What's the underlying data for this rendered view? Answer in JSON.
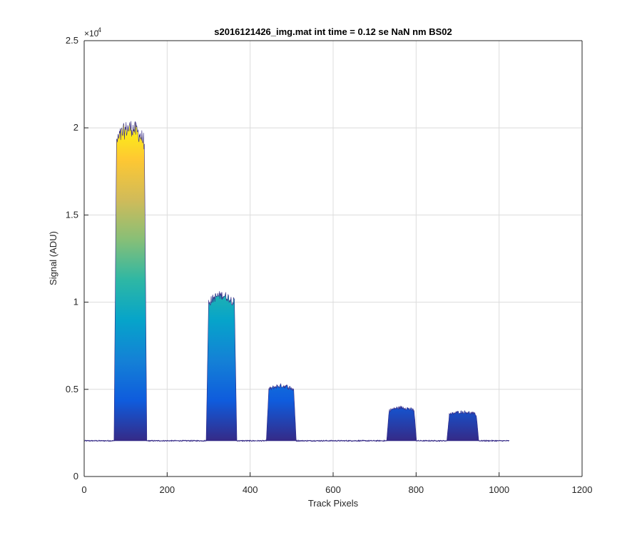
{
  "chart_data": {
    "type": "area",
    "title": "s2016121426_img.mat int time = 0.12 se  NaN nm BS02",
    "xlabel": "Track Pixels",
    "ylabel": "Signal (ADU)",
    "xlim": [
      0,
      1200
    ],
    "ylim": [
      0,
      25000
    ],
    "x_ticks": [
      0,
      200,
      400,
      600,
      800,
      1000,
      1200
    ],
    "x_tick_labels": [
      "0",
      "200",
      "400",
      "600",
      "800",
      "1000",
      "1200"
    ],
    "y_ticks": [
      0,
      5000,
      10000,
      15000,
      20000,
      25000
    ],
    "y_tick_labels": [
      "0",
      "0.5",
      "1",
      "1.5",
      "2",
      "2.5"
    ],
    "y_exponent_label": "×10",
    "y_exponent_power": "4",
    "grid": true,
    "baseline": 2050,
    "x_end": 1024,
    "colormap": [
      "#352a87",
      "#0f5cdd",
      "#1481d6",
      "#06a4ca",
      "#2eb7a4",
      "#87bf77",
      "#d1bb59",
      "#fec832",
      "#f9fb0e"
    ],
    "peaks": [
      {
        "x_start": 78,
        "x_end": 145,
        "peak": 20000
      },
      {
        "x_start": 300,
        "x_end": 362,
        "peak": 10400
      },
      {
        "x_start": 445,
        "x_end": 505,
        "peak": 5200
      },
      {
        "x_start": 735,
        "x_end": 795,
        "peak": 3950
      },
      {
        "x_start": 880,
        "x_end": 945,
        "peak": 3700
      }
    ]
  }
}
